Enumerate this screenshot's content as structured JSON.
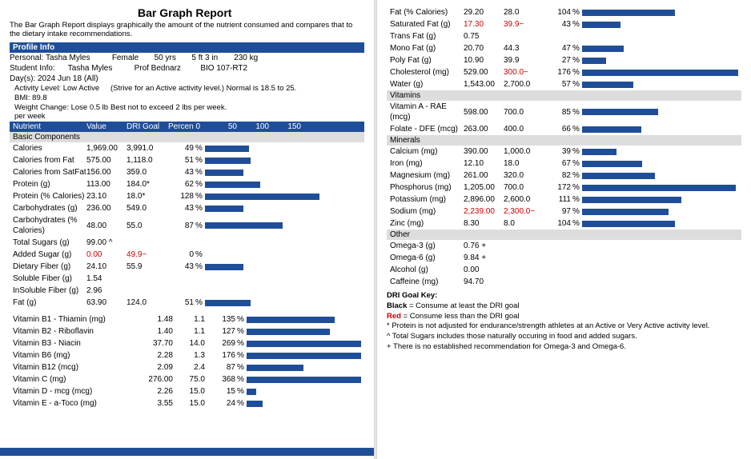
{
  "title": "Bar Graph Report",
  "intro": "The Bar Graph Report displays graphically the amount of the nutrient consumed and compares that to the dietary intake recommendations.",
  "profile_header": "Profile Info",
  "personal_label": "Personal:",
  "personal": {
    "name": "Tasha Myles",
    "sex": "Female",
    "age": "50 yrs",
    "height": "5 ft 3 in",
    "weight": "230 kg"
  },
  "student_label": "Student Info:",
  "student": {
    "name": "Tasha Myles",
    "prof": "Prof Bednarz",
    "course": "BIO 107-RT2"
  },
  "days": "Day(s):  2024 Jun 18 (All)",
  "sub": [
    {
      "l": "Activity Level: Low Active",
      "r": "(Strive for an Active activity level.) Normal is 18.5 to 25."
    },
    {
      "l": "BMI: 89.8",
      "r": ""
    },
    {
      "l": "Weight Change: Lose 0.5 lb per week",
      "r": "Best not to exceed 2 lbs per week."
    }
  ],
  "nutr_cols": {
    "c1": "Nutrient",
    "c2": "Value",
    "c3": "DRI Goal",
    "c4": "Percen 0",
    "s50": "50",
    "s100": "100",
    "s150": "150"
  },
  "scale_max": 175,
  "groups_left": [
    {
      "name": "Basic Components",
      "rows": [
        {
          "n": "Calories",
          "v": "1,969.00",
          "g": "3,991.0",
          "p": 49
        },
        {
          "n": "Calories from Fat",
          "v": "575.00",
          "g": "1,118.0",
          "p": 51
        },
        {
          "n": "Calories from SatFat",
          "v": "156.00",
          "g": "359.0",
          "p": 43
        },
        {
          "n": "Protein (g)",
          "v": "113.00",
          "g": "184.0*",
          "p": 62
        },
        {
          "n": "Protein (% Calories)",
          "v": "23.10",
          "g": "18.0*",
          "p": 128
        },
        {
          "n": "Carbohydrates (g)",
          "v": "236.00",
          "g": "549.0",
          "p": 43
        },
        {
          "n": "Carbohydrates (% Calories)",
          "v": "48.00",
          "g": "55.0",
          "p": 87
        },
        {
          "n": "Total Sugars (g)",
          "v": "99.00 ^",
          "g": "",
          "p": null
        },
        {
          "n": "Added Sugar (g)",
          "v": "0.00",
          "g": "49.9~",
          "p": 0,
          "vred": true,
          "gred": true
        },
        {
          "n": "Dietary Fiber (g)",
          "v": "24.10",
          "g": "55.9",
          "p": 43
        },
        {
          "n": "Soluble Fiber (g)",
          "v": "1.54",
          "g": "",
          "p": null
        },
        {
          "n": "InSoluble Fiber (g)",
          "v": "2.96",
          "g": "",
          "p": null
        },
        {
          "n": "Fat (g)",
          "v": "63.90",
          "g": "124.0",
          "p": 51
        }
      ]
    }
  ],
  "vitamins_left": [
    {
      "n": "Vitamin B1 - Thiamin (mg)",
      "v": "1.48",
      "g": "1.1",
      "p": 135
    },
    {
      "n": "Vitamin B2 - Riboflavin",
      "v": "1.40",
      "g": "1.1",
      "p": 127
    },
    {
      "n": "Vitamin B3 - Niacin",
      "v": "37.70",
      "g": "14.0",
      "p": 269
    },
    {
      "n": "Vitamin B6 (mg)",
      "v": "2.28",
      "g": "1.3",
      "p": 176
    },
    {
      "n": "Vitamin B12 (mcg)",
      "v": "2.09",
      "g": "2.4",
      "p": 87
    },
    {
      "n": "Vitamin C (mg)",
      "v": "276.00",
      "g": "75.0",
      "p": 368
    },
    {
      "n": "Vitamin D - mcg (mcg)",
      "v": "2.26",
      "g": "15.0",
      "p": 15
    },
    {
      "n": "Vitamin E - a-Toco (mg)",
      "v": "3.55",
      "g": "15.0",
      "p": 24
    }
  ],
  "rows_right_top": [
    {
      "n": "Fat (% Calories)",
      "v": "29.20",
      "g": "28.0",
      "p": 104
    },
    {
      "n": "Saturated Fat (g)",
      "v": "17.30",
      "g": "39.9~",
      "p": 43,
      "vred": true,
      "gred": true
    },
    {
      "n": "Trans Fat (g)",
      "v": "0.75",
      "g": "",
      "p": null
    },
    {
      "n": "Mono Fat (g)",
      "v": "20.70",
      "g": "44.3",
      "p": 47
    },
    {
      "n": "Poly Fat (g)",
      "v": "10.90",
      "g": "39.9",
      "p": 27
    },
    {
      "n": "Cholesterol (mg)",
      "v": "529.00",
      "g": "300.0~",
      "p": 176,
      "gred": true
    },
    {
      "n": "Water (g)",
      "v": "1,543.00",
      "g": "2,700.0",
      "p": 57
    }
  ],
  "groups_right": [
    {
      "name": "Vitamins",
      "rows": [
        {
          "n": "Vitamin A - RAE (mcg)",
          "v": "598.00",
          "g": "700.0",
          "p": 85
        },
        {
          "n": "Folate - DFE (mcg)",
          "v": "263.00",
          "g": "400.0",
          "p": 66
        }
      ]
    },
    {
      "name": "Minerals",
      "rows": [
        {
          "n": "Calcium (mg)",
          "v": "390.00",
          "g": "1,000.0",
          "p": 39
        },
        {
          "n": "Iron (mg)",
          "v": "12.10",
          "g": "18.0",
          "p": 67
        },
        {
          "n": "Magnesium (mg)",
          "v": "261.00",
          "g": "320.0",
          "p": 82
        },
        {
          "n": "Phosphorus (mg)",
          "v": "1,205.00",
          "g": "700.0",
          "p": 172
        },
        {
          "n": "Potassium (mg)",
          "v": "2,896.00",
          "g": "2,600.0",
          "p": 111
        },
        {
          "n": "Sodium (mg)",
          "v": "2,239.00",
          "g": "2,300.0~",
          "p": 97,
          "vred": true,
          "gred": true
        },
        {
          "n": "Zinc (mg)",
          "v": "8.30",
          "g": "8.0",
          "p": 104
        }
      ]
    },
    {
      "name": "Other",
      "rows": [
        {
          "n": "Omega-3 (g)",
          "v": "0.76 +",
          "g": "",
          "p": null
        },
        {
          "n": "Omega-6 (g)",
          "v": "9.84 +",
          "g": "",
          "p": null
        },
        {
          "n": "Alcohol (g)",
          "v": "0.00",
          "g": "",
          "p": null
        },
        {
          "n": "Caffeine (mg)",
          "v": "94.70",
          "g": "",
          "p": null
        }
      ]
    }
  ],
  "key_title": "DRI Goal Key:",
  "key": [
    {
      "b": "Black",
      "t": " = Consume at least the DRI goal"
    },
    {
      "b": "Red",
      "t": " = Consume less than the DRI goal",
      "red": true
    }
  ],
  "notes": [
    "* Protein is not adjusted for endurance/strength athletes at an Active or Very Active activity level.",
    "^ Total Sugars includes those naturally occuring in food and added sugars.",
    "+ There is no established recommendation for Omega-3 and Omega-6."
  ]
}
